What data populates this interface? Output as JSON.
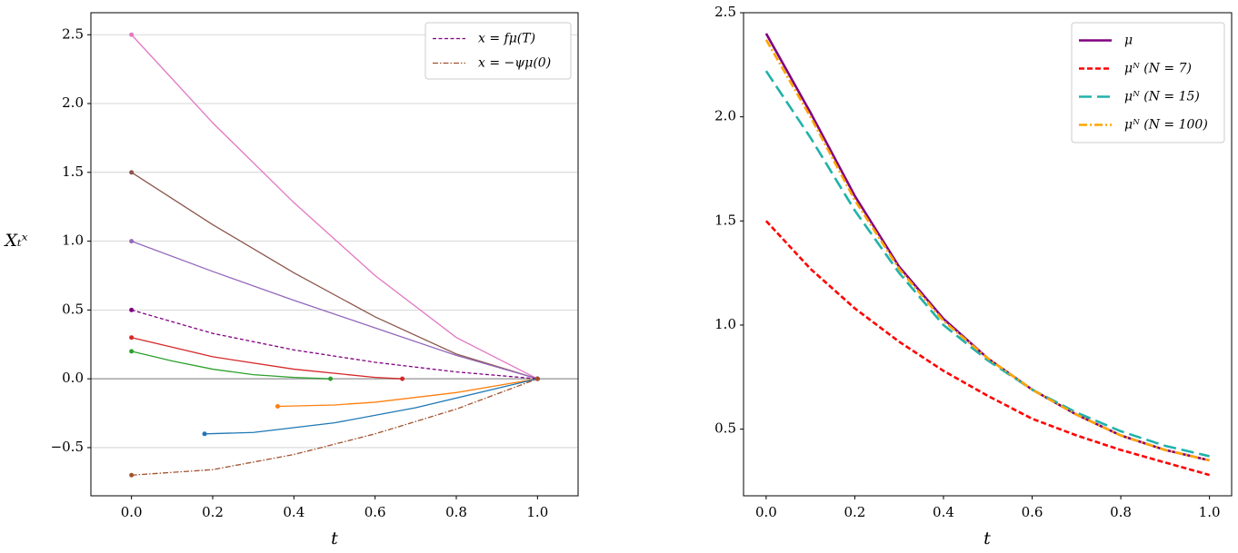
{
  "chart_data": [
    {
      "type": "line",
      "y_label": "Xₜˣ",
      "x_label": "t",
      "xlim": [
        -0.1,
        1.1
      ],
      "ylim": [
        -0.85,
        2.66
      ],
      "xticks": [
        {
          "value": 0,
          "label": "0.0"
        },
        {
          "value": 0.2,
          "label": "0.2"
        },
        {
          "value": 0.4,
          "label": "0.4"
        },
        {
          "value": 0.6,
          "label": "0.6"
        },
        {
          "value": 0.8,
          "label": "0.8"
        },
        {
          "value": 1,
          "label": "1.0"
        }
      ],
      "yticks": [
        {
          "value": -0.5,
          "label": "−0.5"
        },
        {
          "value": 0,
          "label": "0.0"
        },
        {
          "value": 0.5,
          "label": "0.5"
        },
        {
          "value": 1,
          "label": "1.0"
        },
        {
          "value": 1.5,
          "label": "1.5"
        },
        {
          "value": 2,
          "label": "2.0"
        },
        {
          "value": 2.5,
          "label": "2.5"
        }
      ],
      "grid": true,
      "legend": "upper right",
      "markers": "ends",
      "series": [
        {
          "color": "#e377c2",
          "linestyle": "solid",
          "x": [
            0,
            0.2,
            0.4,
            0.6,
            0.8,
            1
          ],
          "values": [
            2.5,
            1.86,
            1.28,
            0.75,
            0.3,
            0
          ]
        },
        {
          "color": "#8c564b",
          "linestyle": "solid",
          "x": [
            0,
            0.2,
            0.4,
            0.6,
            0.8,
            1
          ],
          "values": [
            1.5,
            1.12,
            0.77,
            0.45,
            0.18,
            0
          ]
        },
        {
          "color": "#9467bd",
          "linestyle": "solid",
          "x": [
            0,
            0.2,
            0.4,
            0.6,
            0.8,
            1
          ],
          "values": [
            1.0,
            0.78,
            0.57,
            0.37,
            0.17,
            0
          ]
        },
        {
          "name": "x = fμ(T)",
          "color": "#800080",
          "linestyle": "dashed",
          "x": [
            0,
            0.2,
            0.4,
            0.6,
            0.8,
            1
          ],
          "values": [
            0.5,
            0.33,
            0.21,
            0.12,
            0.05,
            0
          ]
        },
        {
          "color": "#d62728",
          "linestyle": "solid",
          "x": [
            0,
            0.2,
            0.4,
            0.6,
            0.667
          ],
          "values": [
            0.3,
            0.16,
            0.07,
            0.01,
            0
          ]
        },
        {
          "color": "#2ca02c",
          "linestyle": "solid",
          "x": [
            0,
            0.1,
            0.2,
            0.3,
            0.4,
            0.49
          ],
          "values": [
            0.2,
            0.13,
            0.07,
            0.03,
            0.01,
            0
          ]
        },
        {
          "color": "#ff7f0e",
          "linestyle": "solid",
          "x": [
            0.36,
            0.5,
            0.6,
            0.8,
            1
          ],
          "values": [
            -0.2,
            -0.19,
            -0.17,
            -0.1,
            0
          ]
        },
        {
          "color": "#1f77b4",
          "linestyle": "solid",
          "x": [
            0.18,
            0.3,
            0.5,
            0.7,
            0.9,
            1
          ],
          "values": [
            -0.4,
            -0.39,
            -0.32,
            -0.21,
            -0.07,
            0
          ]
        },
        {
          "name": "x = −ψμ(0)",
          "color": "#a0522d",
          "linestyle": "dashdot",
          "x": [
            0,
            0.2,
            0.4,
            0.6,
            0.8,
            1
          ],
          "values": [
            -0.7,
            -0.66,
            -0.55,
            -0.4,
            -0.22,
            0
          ]
        }
      ]
    },
    {
      "type": "line",
      "x_label": "t",
      "xlim": [
        -0.051,
        1.05
      ],
      "ylim": [
        0.18,
        2.5
      ],
      "x": [
        0,
        0.1,
        0.2,
        0.3,
        0.4,
        0.5,
        0.6,
        0.7,
        0.8,
        0.9,
        1
      ],
      "xticks": [
        {
          "value": 0,
          "label": "0.0"
        },
        {
          "value": 0.2,
          "label": "0.2"
        },
        {
          "value": 0.4,
          "label": "0.4"
        },
        {
          "value": 0.6,
          "label": "0.6"
        },
        {
          "value": 0.8,
          "label": "0.8"
        },
        {
          "value": 1,
          "label": "1.0"
        }
      ],
      "yticks": [
        {
          "value": 0.5,
          "label": "0.5"
        },
        {
          "value": 1,
          "label": "1.0"
        },
        {
          "value": 1.5,
          "label": "1.5"
        },
        {
          "value": 2,
          "label": "2.0"
        },
        {
          "value": 2.5,
          "label": "2.5"
        }
      ],
      "grid": false,
      "legend": "upper right",
      "series": [
        {
          "name": "μ",
          "color": "#800080",
          "linestyle": "solid",
          "values": [
            2.4,
            2.02,
            1.62,
            1.28,
            1.03,
            0.84,
            0.69,
            0.57,
            0.47,
            0.4,
            0.35
          ]
        },
        {
          "name": "μᴺ (N = 7)",
          "color": "#ff0000",
          "linestyle": "dashed",
          "values": [
            1.5,
            1.27,
            1.08,
            0.92,
            0.78,
            0.66,
            0.55,
            0.47,
            0.4,
            0.34,
            0.28
          ]
        },
        {
          "name": "μᴺ (N = 15)",
          "color": "#20b2aa",
          "linestyle": "longdash",
          "values": [
            2.22,
            1.9,
            1.55,
            1.25,
            1.0,
            0.83,
            0.69,
            0.58,
            0.49,
            0.42,
            0.37
          ]
        },
        {
          "name": "μᴺ (N = 100)",
          "color": "#ffa500",
          "linestyle": "dashdot",
          "values": [
            2.37,
            2.0,
            1.6,
            1.27,
            1.02,
            0.84,
            0.69,
            0.57,
            0.47,
            0.4,
            0.35
          ]
        }
      ]
    }
  ]
}
